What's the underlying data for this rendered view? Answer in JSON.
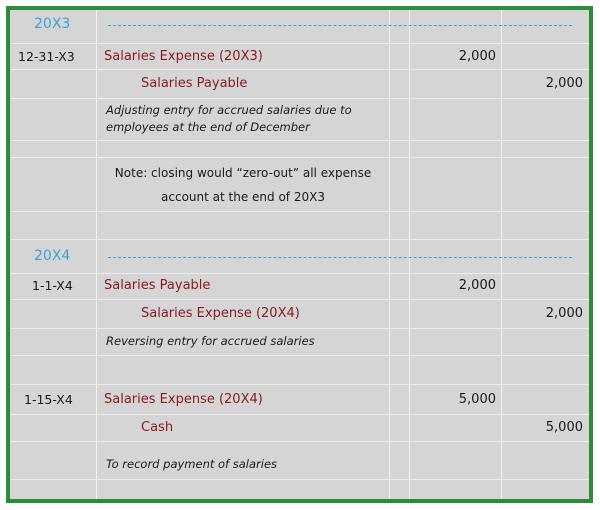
{
  "sections": [
    {
      "year": "20X3"
    },
    {
      "year": "20X4"
    }
  ],
  "entries": [
    {
      "date": "12-31-X3",
      "debit_account": "Salaries Expense (20X3)",
      "debit_amount": "2,000",
      "credit_account": "Salaries Payable",
      "credit_amount": "2,000",
      "description_line1": "Adjusting entry for accrued salaries due to",
      "description_line2": "employees at the end of December"
    },
    {
      "date": "1-1-X4",
      "debit_account": "Salaries Payable",
      "debit_amount": "2,000",
      "credit_account": "Salaries Expense (20X4)",
      "credit_amount": "2,000",
      "description": "Reversing entry for accrued salaries"
    },
    {
      "date": "1-15-X4",
      "debit_account": "Salaries Expense (20X4)",
      "debit_amount": "5,000",
      "credit_account": "Cash",
      "credit_amount": "5,000",
      "description": "To record payment of salaries"
    }
  ],
  "note": {
    "line1": "Note: closing would “zero-out” all expense",
    "line2": "account at the end of 20X3"
  },
  "colors": {
    "border": "#2e8b3a",
    "year": "#3ba0dc",
    "account": "#8b1a1f",
    "background": "#d5d5d5"
  }
}
